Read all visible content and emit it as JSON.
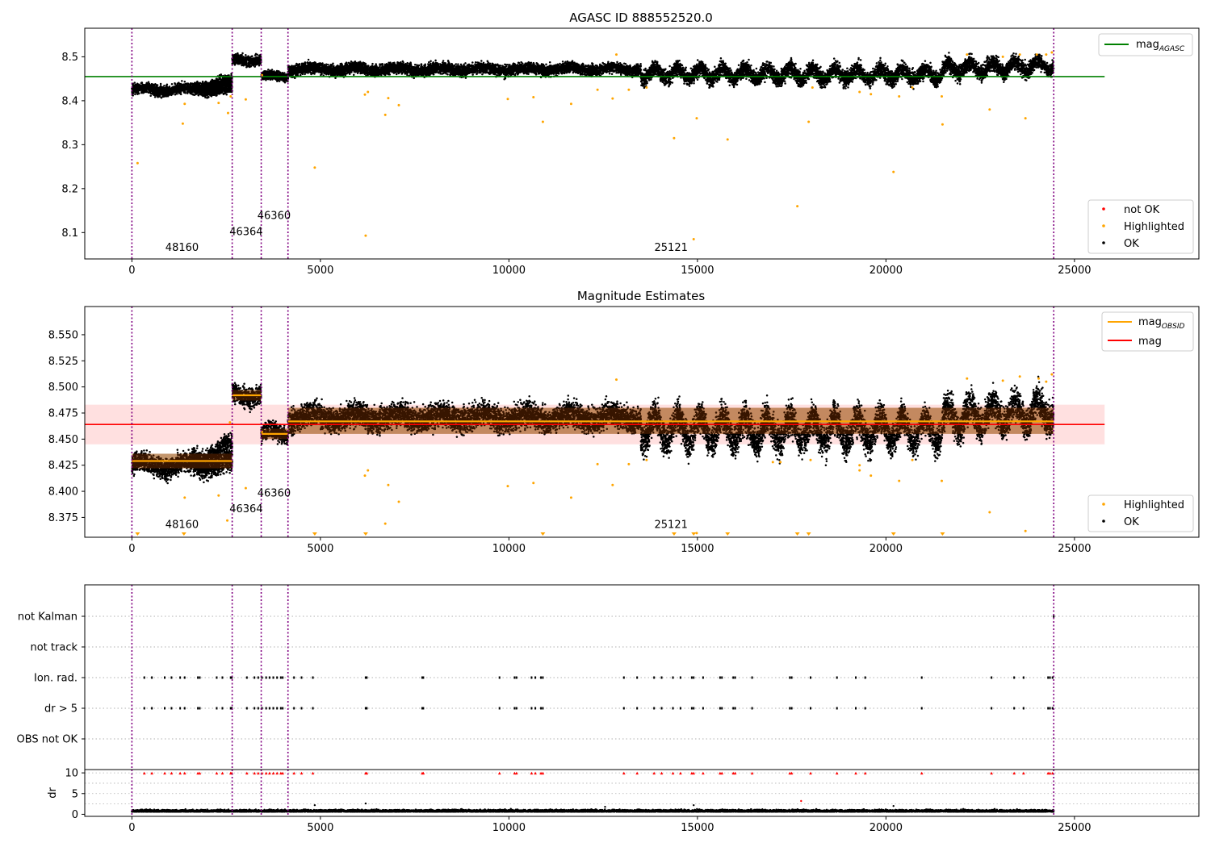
{
  "figure": {
    "x_ticks": [
      0,
      5000,
      10000,
      15000,
      20000,
      25000
    ],
    "x_tick_labels": [
      "0",
      "5000",
      "10000",
      "15000",
      "20000",
      "25000"
    ],
    "xlim": [
      -1250,
      28300
    ],
    "obsid_boundaries": [
      0,
      2660,
      3430,
      4140,
      24450
    ]
  },
  "chart_data": [
    {
      "type": "scatter",
      "title": "AGASC ID 888552520.0",
      "xlabel": "",
      "ylabel": "",
      "ylim": [
        8.04,
        8.565
      ],
      "y_ticks": [
        8.1,
        8.2,
        8.3,
        8.4,
        8.5
      ],
      "y_tick_labels": [
        "8.1",
        "8.2",
        "8.3",
        "8.4",
        "8.5"
      ],
      "reference_line": {
        "name": "mag_AGASC",
        "y": 8.455,
        "x_range": [
          -1250,
          25800
        ],
        "color": "#008000"
      },
      "segments": [
        {
          "x0": 0,
          "x1": 2660,
          "y0": 8.425,
          "y1": 8.425,
          "spread": 0.012
        },
        {
          "x0": 1600,
          "x1": 2660,
          "y0": 8.43,
          "y1": 8.445,
          "spread": 0.012
        },
        {
          "x0": 2660,
          "x1": 3430,
          "y0": 8.493,
          "y1": 8.493,
          "spread": 0.012
        },
        {
          "x0": 3430,
          "x1": 4140,
          "y0": 8.455,
          "y1": 8.455,
          "spread": 0.01
        },
        {
          "x0": 4140,
          "x1": 13500,
          "y0": 8.472,
          "y1": 8.472,
          "spread": 0.013
        },
        {
          "x0": 13500,
          "x1": 21500,
          "y0": 8.462,
          "y1": 8.46,
          "spread": 0.018
        },
        {
          "x0": 21500,
          "x1": 24450,
          "y0": 8.472,
          "y1": 8.48,
          "spread": 0.018
        }
      ],
      "highlighted_points": [
        [
          150,
          8.258
        ],
        [
          1350,
          8.348
        ],
        [
          1400,
          8.393
        ],
        [
          2300,
          8.395
        ],
        [
          2550,
          8.372
        ],
        [
          2620,
          8.41
        ],
        [
          3020,
          8.403
        ],
        [
          3450,
          8.458
        ],
        [
          4850,
          8.248
        ],
        [
          6180,
          8.414
        ],
        [
          6260,
          8.42
        ],
        [
          6200,
          8.093
        ],
        [
          6720,
          8.368
        ],
        [
          6800,
          8.406
        ],
        [
          7080,
          8.39
        ],
        [
          9970,
          8.404
        ],
        [
          10650,
          8.408
        ],
        [
          10900,
          8.352
        ],
        [
          11650,
          8.393
        ],
        [
          12350,
          8.425
        ],
        [
          12750,
          8.405
        ],
        [
          12850,
          8.505
        ],
        [
          13180,
          8.425
        ],
        [
          13650,
          8.43
        ],
        [
          14380,
          8.315
        ],
        [
          14900,
          8.085
        ],
        [
          14980,
          8.36
        ],
        [
          15800,
          8.312
        ],
        [
          17650,
          8.16
        ],
        [
          17950,
          8.352
        ],
        [
          18050,
          8.43
        ],
        [
          19300,
          8.42
        ],
        [
          19600,
          8.415
        ],
        [
          20200,
          8.238
        ],
        [
          20350,
          8.41
        ],
        [
          20700,
          8.43
        ],
        [
          21500,
          8.346
        ],
        [
          21480,
          8.41
        ],
        [
          22150,
          8.505
        ],
        [
          22750,
          8.38
        ],
        [
          23100,
          8.5
        ],
        [
          23550,
          8.505
        ],
        [
          23700,
          8.36
        ],
        [
          24000,
          8.505
        ],
        [
          24250,
          8.505
        ],
        [
          24400,
          8.51
        ]
      ],
      "obsid_labels": [
        {
          "text": "48160",
          "x": 1330,
          "y": 8.058
        },
        {
          "text": "46364",
          "x": 3030,
          "y": 8.094
        },
        {
          "text": "46360",
          "x": 3770,
          "y": 8.131
        },
        {
          "text": "25121",
          "x": 14300,
          "y": 8.058
        }
      ],
      "legend_top": {
        "placement": "top-right",
        "entries": [
          {
            "label": "mag",
            "sub": "AGASC",
            "color": "#008000"
          }
        ]
      },
      "legend_bottom": {
        "placement": "bottom-right",
        "entries": [
          {
            "label": "not OK",
            "color": "#ff0000"
          },
          {
            "label": "Highlighted",
            "color": "#ffa500"
          },
          {
            "label": "OK",
            "color": "#000000"
          }
        ]
      }
    },
    {
      "type": "scatter",
      "title": "Magnitude Estimates",
      "xlabel": "",
      "ylabel": "",
      "ylim": [
        8.356,
        8.577
      ],
      "y_ticks": [
        8.375,
        8.4,
        8.425,
        8.45,
        8.475,
        8.5,
        8.525,
        8.55
      ],
      "y_tick_labels": [
        "8.375",
        "8.400",
        "8.425",
        "8.450",
        "8.475",
        "8.500",
        "8.525",
        "8.550"
      ],
      "mag_line": {
        "name": "mag",
        "y": 8.464,
        "band": [
          8.445,
          8.483
        ],
        "x_range": [
          -1250,
          25800
        ],
        "color": "#ff0000"
      },
      "obsid_mags": [
        {
          "x0": 0,
          "x1": 2660,
          "y": 8.429
        },
        {
          "x0": 2660,
          "x1": 3430,
          "y": 8.492
        },
        {
          "x0": 3430,
          "x1": 4140,
          "y": 8.455
        },
        {
          "x0": 4140,
          "x1": 24450,
          "y": 8.467
        }
      ],
      "obsid_bands": [
        {
          "x0": 0,
          "x1": 2660,
          "y0": 8.422,
          "y1": 8.436
        },
        {
          "x0": 2660,
          "x1": 3430,
          "y0": 8.487,
          "y1": 8.497
        },
        {
          "x0": 3430,
          "x1": 4140,
          "y0": 8.45,
          "y1": 8.46
        },
        {
          "x0": 4140,
          "x1": 24450,
          "y0": 8.455,
          "y1": 8.48
        }
      ],
      "segments": [
        {
          "x0": 0,
          "x1": 2660,
          "y0": 8.425,
          "y1": 8.425,
          "spread": 0.01
        },
        {
          "x0": 1600,
          "x1": 2660,
          "y0": 8.43,
          "y1": 8.442,
          "spread": 0.01
        },
        {
          "x0": 2660,
          "x1": 3430,
          "y0": 8.493,
          "y1": 8.493,
          "spread": 0.01
        },
        {
          "x0": 3430,
          "x1": 4140,
          "y0": 8.455,
          "y1": 8.455,
          "spread": 0.008
        },
        {
          "x0": 4140,
          "x1": 13500,
          "y0": 8.471,
          "y1": 8.471,
          "spread": 0.012
        },
        {
          "x0": 13500,
          "x1": 21500,
          "y0": 8.46,
          "y1": 8.458,
          "spread": 0.016
        },
        {
          "x0": 21500,
          "x1": 24450,
          "y0": 8.47,
          "y1": 8.478,
          "spread": 0.016
        }
      ],
      "highlighted_points": [
        [
          1400,
          8.394
        ],
        [
          2300,
          8.396
        ],
        [
          2530,
          8.372
        ],
        [
          2600,
          8.466
        ],
        [
          3020,
          8.403
        ],
        [
          3450,
          8.457
        ],
        [
          6180,
          8.415
        ],
        [
          6260,
          8.42
        ],
        [
          6720,
          8.369
        ],
        [
          6800,
          8.406
        ],
        [
          7080,
          8.39
        ],
        [
          9970,
          8.405
        ],
        [
          10650,
          8.408
        ],
        [
          11650,
          8.394
        ],
        [
          12350,
          8.426
        ],
        [
          12750,
          8.406
        ],
        [
          12850,
          8.507
        ],
        [
          13180,
          8.426
        ],
        [
          13650,
          8.43
        ],
        [
          14980,
          8.36
        ],
        [
          17000,
          8.428
        ],
        [
          17200,
          8.428
        ],
        [
          18000,
          8.43
        ],
        [
          19300,
          8.425
        ],
        [
          19300,
          8.42
        ],
        [
          19600,
          8.415
        ],
        [
          20350,
          8.41
        ],
        [
          20700,
          8.43
        ],
        [
          21480,
          8.41
        ],
        [
          22150,
          8.508
        ],
        [
          22750,
          8.38
        ],
        [
          23100,
          8.506
        ],
        [
          23550,
          8.51
        ],
        [
          23700,
          8.362
        ],
        [
          24050,
          8.508
        ],
        [
          24250,
          8.505
        ],
        [
          24400,
          8.512
        ]
      ],
      "offscale_points": [
        150,
        1380,
        4850,
        6200,
        10900,
        14380,
        14900,
        15800,
        17650,
        17950,
        20200,
        21500
      ],
      "obsid_labels": [
        {
          "text": "48160",
          "x": 1330,
          "y": 8.365
        },
        {
          "text": "46364",
          "x": 3030,
          "y": 8.38
        },
        {
          "text": "46360",
          "x": 3770,
          "y": 8.395
        },
        {
          "text": "25121",
          "x": 14300,
          "y": 8.365
        }
      ],
      "legend_top": {
        "placement": "top-right",
        "entries": [
          {
            "label": "mag",
            "sub": "OBSID",
            "color": "#ffa500"
          },
          {
            "label": "mag",
            "sub": "",
            "color": "#ff0000"
          }
        ]
      },
      "legend_bottom": {
        "placement": "bottom-right",
        "entries": [
          {
            "label": "Highlighted",
            "color": "#ffa500"
          },
          {
            "label": "OK",
            "color": "#000000"
          }
        ]
      }
    },
    {
      "type": "scatter",
      "title": "",
      "xlabel": "",
      "ylabel": "",
      "flag_categories": [
        "not Kalman",
        "not track",
        "Ion. rad.",
        "dr > 5",
        "OBS not OK"
      ],
      "flag_points": {
        "not Kalman": [
          24450
        ],
        "not track": [],
        "Ion. rad.": [
          330,
          530,
          870,
          1050,
          1280,
          1400,
          1750,
          1800,
          2250,
          2400,
          2620,
          2650,
          3050,
          3250,
          3350,
          3450,
          3560,
          3650,
          3750,
          3850,
          3950,
          4000,
          4300,
          4500,
          4800,
          6200,
          6230,
          7700,
          7730,
          9750,
          10150,
          10200,
          10600,
          10700,
          10850,
          10900,
          13050,
          13400,
          13850,
          14050,
          14350,
          14550,
          14850,
          14900,
          15150,
          15600,
          15650,
          15950,
          16000,
          16450,
          17450,
          17500,
          18000,
          18700,
          19200,
          19450,
          20950,
          22800,
          23400,
          23650,
          24300,
          24350,
          24420
        ],
        "dr > 5": [
          330,
          530,
          870,
          1050,
          1280,
          1400,
          1750,
          1800,
          2250,
          2400,
          2620,
          2650,
          3050,
          3250,
          3350,
          3450,
          3560,
          3650,
          3750,
          3850,
          3950,
          4000,
          4300,
          4500,
          4800,
          6200,
          6230,
          7700,
          7730,
          9750,
          10150,
          10200,
          10600,
          10700,
          10850,
          10900,
          13050,
          13400,
          13850,
          14050,
          14350,
          14550,
          14850,
          14900,
          15150,
          15600,
          15650,
          15950,
          16000,
          16450,
          17450,
          17500,
          18000,
          18700,
          19200,
          19450,
          20950,
          22800,
          23400,
          23650,
          24300,
          24350,
          24420
        ],
        "OBS not OK": []
      }
    },
    {
      "type": "scatter",
      "title": "",
      "xlabel": "",
      "ylabel": "dr",
      "ylim": [
        -0.5,
        10.8
      ],
      "y_ticks": [
        0,
        5,
        10
      ],
      "y_tick_labels": [
        "0",
        "5",
        "10"
      ],
      "baseline": {
        "y_mean": 0.6,
        "spread": 0.45,
        "x0": 0,
        "x1": 24450
      },
      "outliers": [
        [
          4850,
          2.2
        ],
        [
          6200,
          2.6
        ],
        [
          14900,
          2.2
        ],
        [
          17750,
          3.2
        ],
        [
          20200,
          2.0
        ],
        [
          12550,
          1.8
        ]
      ],
      "clipped_at": 10,
      "clipped_points": [
        330,
        530,
        870,
        1050,
        1280,
        1400,
        1750,
        1800,
        2250,
        2400,
        2620,
        2650,
        3050,
        3250,
        3350,
        3450,
        3560,
        3650,
        3750,
        3850,
        3950,
        4000,
        4300,
        4500,
        4800,
        6200,
        6230,
        7700,
        7730,
        9750,
        10150,
        10200,
        10600,
        10700,
        10850,
        10900,
        13050,
        13400,
        13850,
        14050,
        14350,
        14550,
        14850,
        14900,
        15150,
        15600,
        15650,
        15950,
        16000,
        16450,
        17450,
        17500,
        18000,
        18700,
        19200,
        19450,
        20950,
        22800,
        23400,
        23650,
        24300,
        24350,
        24420
      ]
    }
  ]
}
